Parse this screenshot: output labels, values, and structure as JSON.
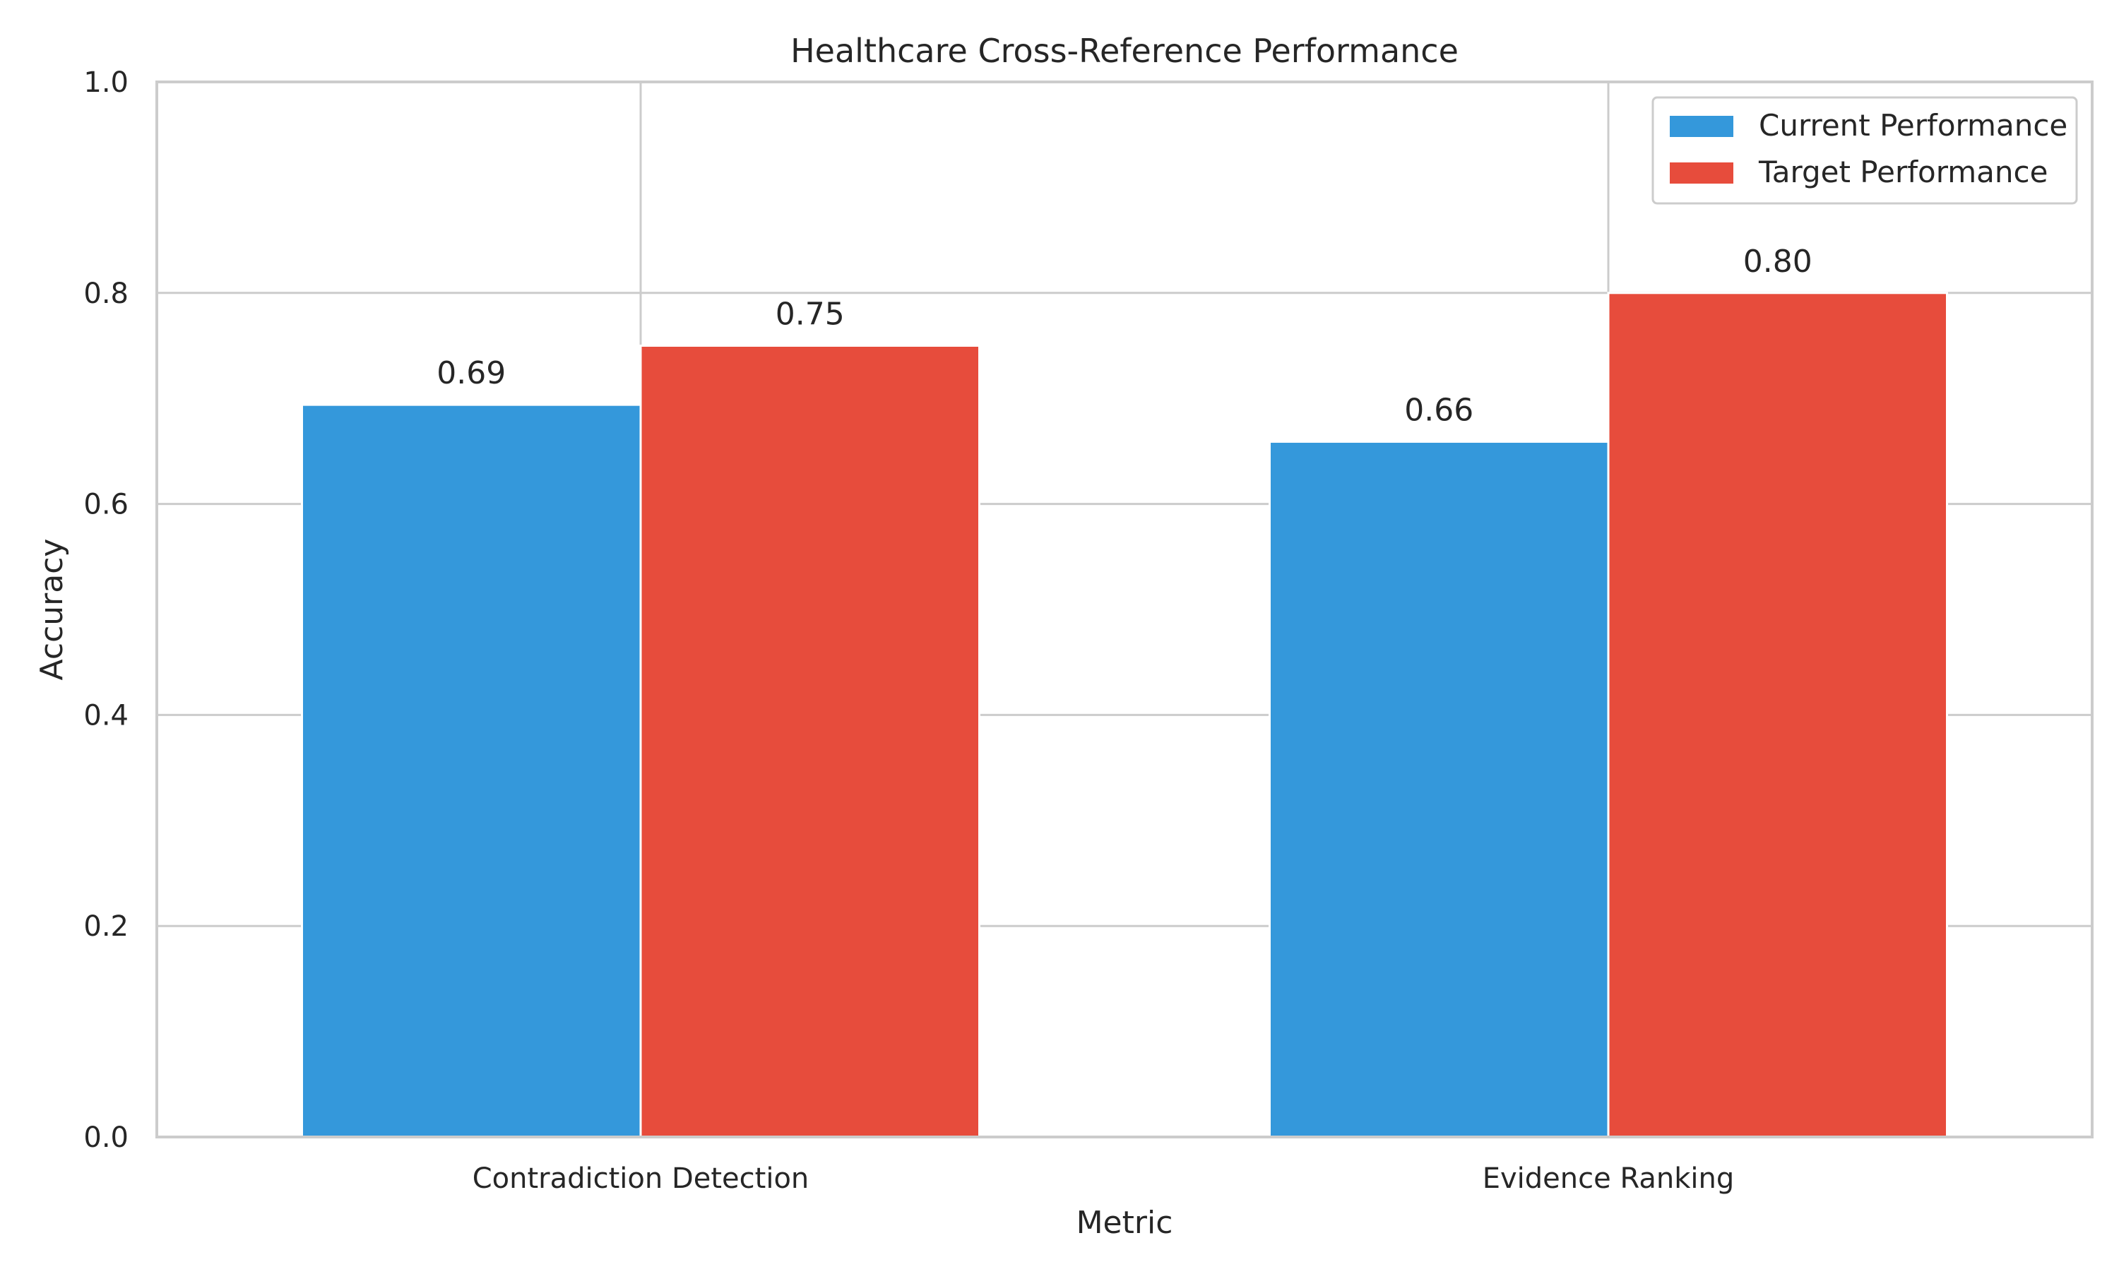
{
  "chart_data": {
    "type": "bar",
    "title": "Healthcare Cross-Reference Performance",
    "xlabel": "Metric",
    "ylabel": "Accuracy",
    "categories": [
      "Contradiction Detection",
      "Evidence Ranking"
    ],
    "series": [
      {
        "name": "Current Performance",
        "values": [
          0.694,
          0.659
        ],
        "labels": [
          "0.69",
          "0.66"
        ],
        "color": "#3498db"
      },
      {
        "name": "Target Performance",
        "values": [
          0.75,
          0.8
        ],
        "labels": [
          "0.75",
          "0.80"
        ],
        "color": "#e74c3c"
      }
    ],
    "ylim": [
      0,
      1.0
    ],
    "yticks": [
      "0.0",
      "0.2",
      "0.4",
      "0.6",
      "0.8",
      "1.0"
    ],
    "grid": true,
    "legend_position": "top-right"
  }
}
